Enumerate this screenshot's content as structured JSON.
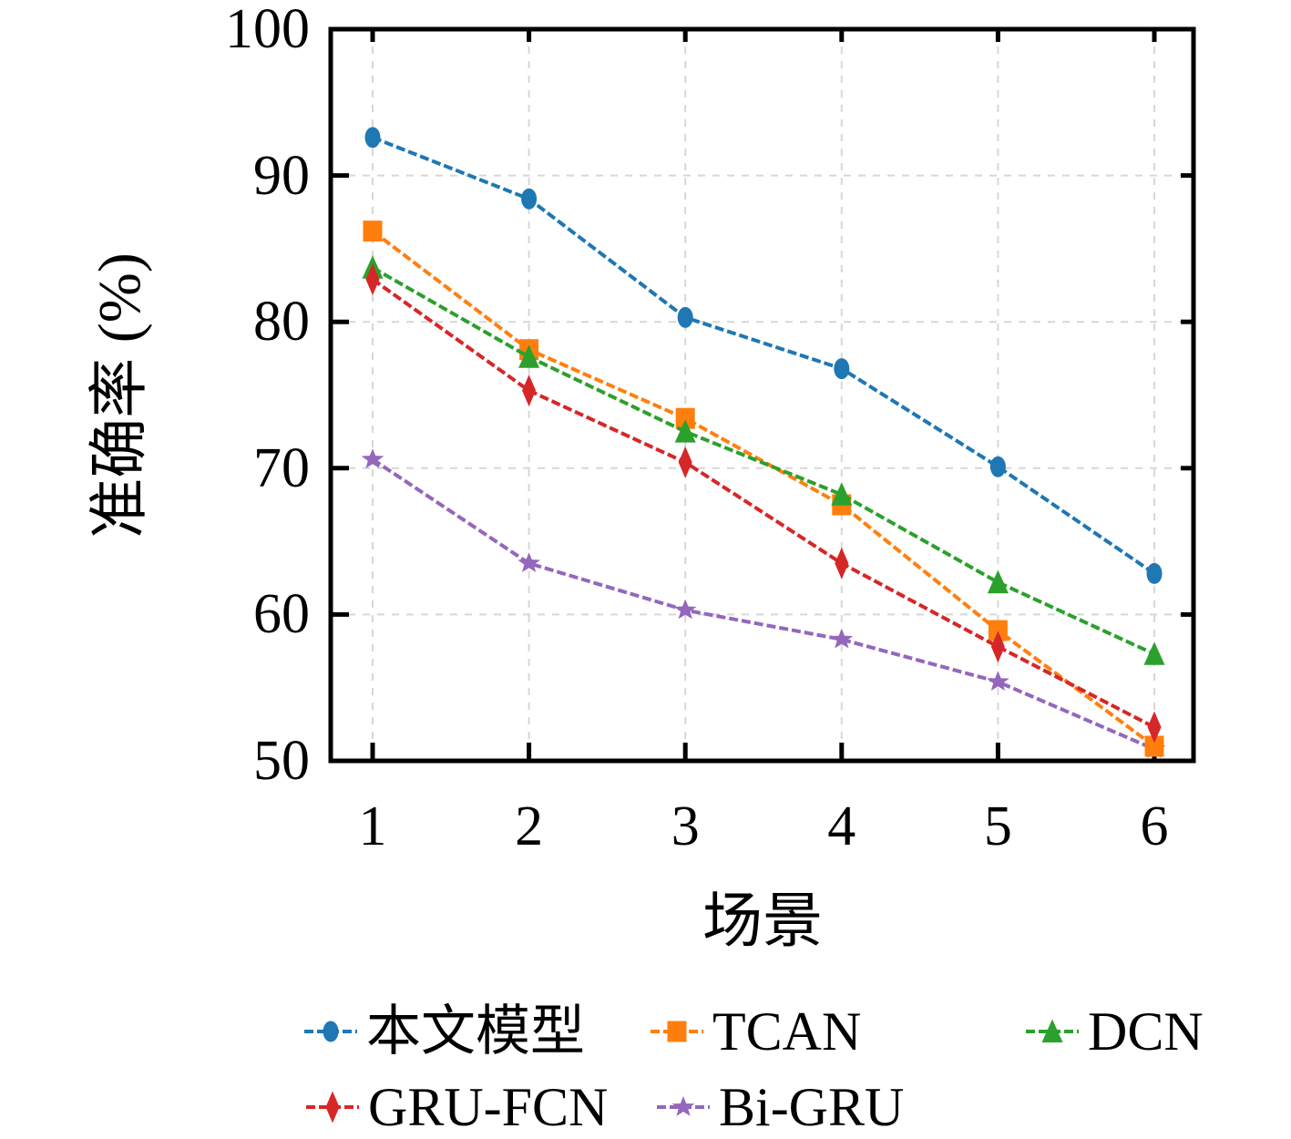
{
  "chart_data": {
    "type": "line",
    "title": "",
    "xlabel": "场景",
    "ylabel": "准确率 (%)",
    "x": [
      1,
      2,
      3,
      4,
      5,
      6
    ],
    "xticks": [
      1,
      2,
      3,
      4,
      5,
      6
    ],
    "yticks": [
      50,
      60,
      70,
      80,
      90,
      100
    ],
    "ylim": [
      50,
      100
    ],
    "xlim_padding": "categories 1-6 inset from box edges",
    "grid": "dashed light-gray at every x tick and every 10 on y",
    "legend_position": "below plot, two rows",
    "frame_color": "#000000",
    "gridline_color": "#d7d7d7",
    "series": [
      {
        "name": "本文模型",
        "color": "#1f77b4",
        "marker": "circle",
        "values": [
          92.6,
          88.4,
          80.3,
          76.8,
          70.1,
          62.8
        ]
      },
      {
        "name": "TCAN",
        "color": "#ff7f0e",
        "marker": "square",
        "values": [
          86.2,
          78.1,
          73.4,
          67.5,
          58.9,
          51.0
        ]
      },
      {
        "name": "DCN",
        "color": "#2ca02c",
        "marker": "triangle",
        "values": [
          83.7,
          77.6,
          72.5,
          68.2,
          62.2,
          57.3
        ]
      },
      {
        "name": "GRU-FCN",
        "color": "#d62728",
        "marker": "diamond",
        "values": [
          82.9,
          75.3,
          70.4,
          63.5,
          57.8,
          52.3
        ]
      },
      {
        "name": "Bi-GRU",
        "color": "#9467bd",
        "marker": "star",
        "values": [
          70.6,
          63.5,
          60.3,
          58.3,
          55.4,
          50.8
        ]
      }
    ]
  }
}
